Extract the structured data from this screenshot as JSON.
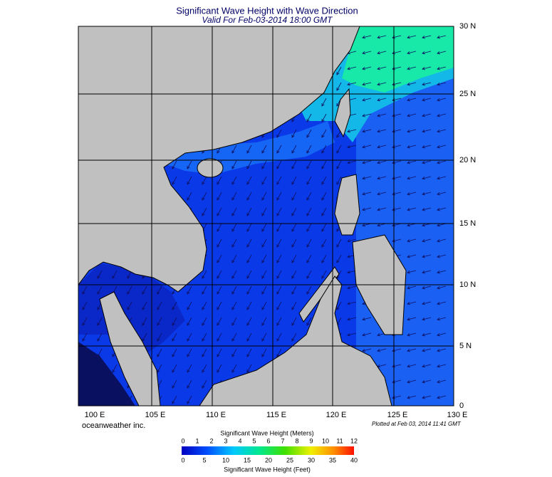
{
  "header": {
    "title": "Significant Wave Height with Wave Direction",
    "subtitle": "Valid For Feb-03-2014 18:00 GMT"
  },
  "map": {
    "lat_labels": [
      "30 N",
      "25 N",
      "20 N",
      "15 N",
      "10 N",
      "5 N",
      "0"
    ],
    "lon_labels": [
      "100 E",
      "105 E",
      "110 E",
      "115 E",
      "120 E",
      "125 E",
      "130 E"
    ],
    "credit": "oceanweather inc.",
    "plotted": "Plotted at Feb 03, 2014 11:41 GMT"
  },
  "legend": {
    "meters_title": "Significant Wave Height (Meters)",
    "meters_ticks": [
      0,
      1,
      2,
      3,
      4,
      5,
      6,
      7,
      8,
      9,
      10,
      11,
      12
    ],
    "feet_title": "Significant Wave Height (Feet)",
    "feet_ticks": [
      0,
      5,
      10,
      15,
      20,
      25,
      30,
      35,
      40
    ]
  }
}
